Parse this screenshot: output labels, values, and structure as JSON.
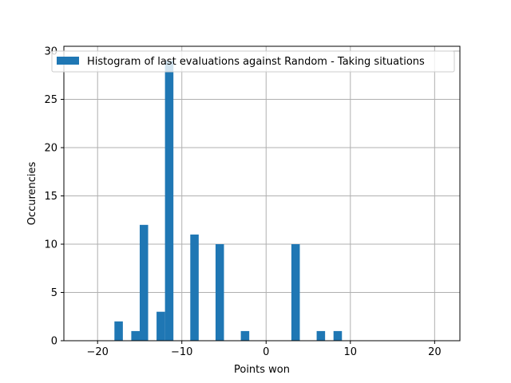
{
  "chart_data": {
    "type": "bar",
    "subtype": "histogram",
    "title": "",
    "xlabel": "Points won",
    "ylabel": "Occurencies",
    "xlim": [
      -24,
      23
    ],
    "ylim": [
      0,
      30.5
    ],
    "x_ticks": [
      -20,
      -10,
      0,
      10,
      20
    ],
    "x_tick_labels": [
      "−20",
      "−10",
      "0",
      "10",
      "20"
    ],
    "y_ticks": [
      0,
      5,
      10,
      15,
      20,
      25,
      30
    ],
    "y_tick_labels": [
      "0",
      "5",
      "10",
      "15",
      "20",
      "25",
      "30"
    ],
    "grid": true,
    "legend": {
      "location": "top-right",
      "entries": [
        "Histogram of last evaluations against Random - Taking situations"
      ]
    },
    "colors": {
      "bar": "#1f77b4",
      "grid": "#b0b0b0"
    },
    "bin_width": 1,
    "series": [
      {
        "name": "Histogram of last evaluations against Random - Taking situations",
        "bins": [
          {
            "x0": -18,
            "x1": -17,
            "count": 2
          },
          {
            "x0": -16,
            "x1": -15,
            "count": 1
          },
          {
            "x0": -15,
            "x1": -14,
            "count": 12
          },
          {
            "x0": -13,
            "x1": -12,
            "count": 3
          },
          {
            "x0": -12,
            "x1": -11,
            "count": 29
          },
          {
            "x0": -9,
            "x1": -8,
            "count": 11
          },
          {
            "x0": -6,
            "x1": -5,
            "count": 10
          },
          {
            "x0": -3,
            "x1": -2,
            "count": 1
          },
          {
            "x0": 3,
            "x1": 4,
            "count": 10
          },
          {
            "x0": 6,
            "x1": 7,
            "count": 1
          },
          {
            "x0": 8,
            "x1": 9,
            "count": 1
          }
        ]
      }
    ]
  }
}
